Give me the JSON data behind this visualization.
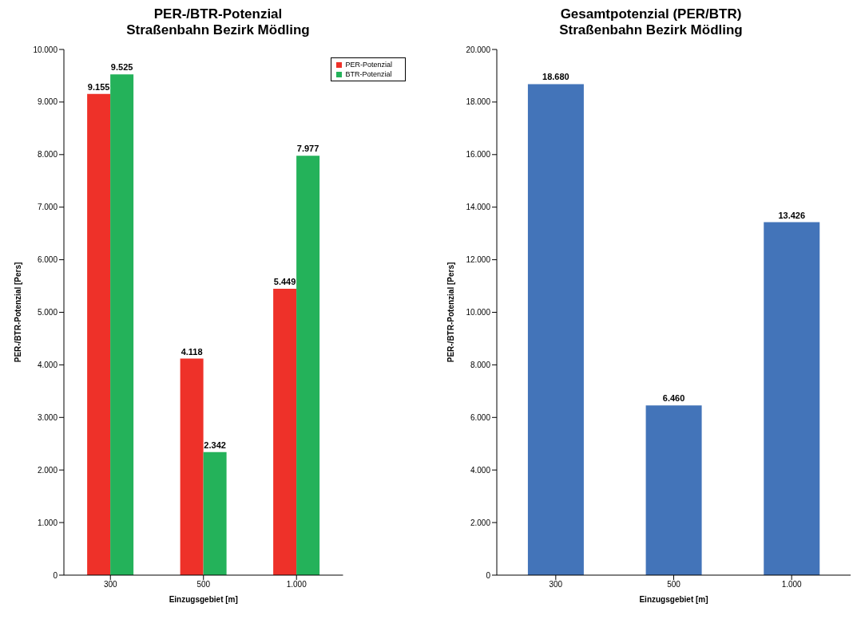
{
  "chart_data": [
    {
      "type": "bar",
      "title": "PER-/BTR-Potenzial\nStraßenbahn Bezirk Mödling",
      "xlabel": "Einzugsgebiet [m]",
      "ylabel": "PER-/BTR-Potenzial [Pers]",
      "categories": [
        "300",
        "500",
        "1.000"
      ],
      "series": [
        {
          "name": "PER-Potenzial",
          "color": "#ee3129",
          "values": [
            9155,
            4118,
            5449
          ],
          "value_labels": [
            "9.155",
            "4.118",
            "5.449"
          ]
        },
        {
          "name": "BTR-Potenzial",
          "color": "#24b25a",
          "values": [
            9525,
            2342,
            7977
          ],
          "value_labels": [
            "9.525",
            "2.342",
            "7.977"
          ]
        }
      ],
      "ylim": [
        0,
        10000
      ],
      "yticks": [
        {
          "value": 0,
          "label": "0"
        },
        {
          "value": 1000,
          "label": "1.000"
        },
        {
          "value": 2000,
          "label": "2.000"
        },
        {
          "value": 3000,
          "label": "3.000"
        },
        {
          "value": 4000,
          "label": "4.000"
        },
        {
          "value": 5000,
          "label": "5.000"
        },
        {
          "value": 6000,
          "label": "6.000"
        },
        {
          "value": 7000,
          "label": "7.000"
        },
        {
          "value": 8000,
          "label": "8.000"
        },
        {
          "value": 9000,
          "label": "9.000"
        },
        {
          "value": 10000,
          "label": "10.000"
        }
      ],
      "legend": "top right"
    },
    {
      "type": "bar",
      "title": "Gesamtpotenzial (PER/BTR)\nStraßenbahn Bezirk Mödling",
      "xlabel": "Einzugsgebiet [m]",
      "ylabel": "PER-/BTR-Potenzial [Pers]",
      "categories": [
        "300",
        "500",
        "1.000"
      ],
      "series": [
        {
          "color": "#4374b9",
          "values": [
            18680,
            6460,
            13426
          ],
          "value_labels": [
            "18.680",
            "6.460",
            "13.426"
          ]
        }
      ],
      "ylim": [
        0,
        20000
      ],
      "yticks": [
        {
          "value": 0,
          "label": "0"
        },
        {
          "value": 2000,
          "label": "2.000"
        },
        {
          "value": 4000,
          "label": "4.000"
        },
        {
          "value": 6000,
          "label": "6.000"
        },
        {
          "value": 8000,
          "label": "8.000"
        },
        {
          "value": 10000,
          "label": "10.000"
        },
        {
          "value": 12000,
          "label": "12.000"
        },
        {
          "value": 14000,
          "label": "14.000"
        },
        {
          "value": 16000,
          "label": "16.000"
        },
        {
          "value": 18000,
          "label": "18.000"
        },
        {
          "value": 20000,
          "label": "20.000"
        }
      ],
      "legend": false
    }
  ]
}
